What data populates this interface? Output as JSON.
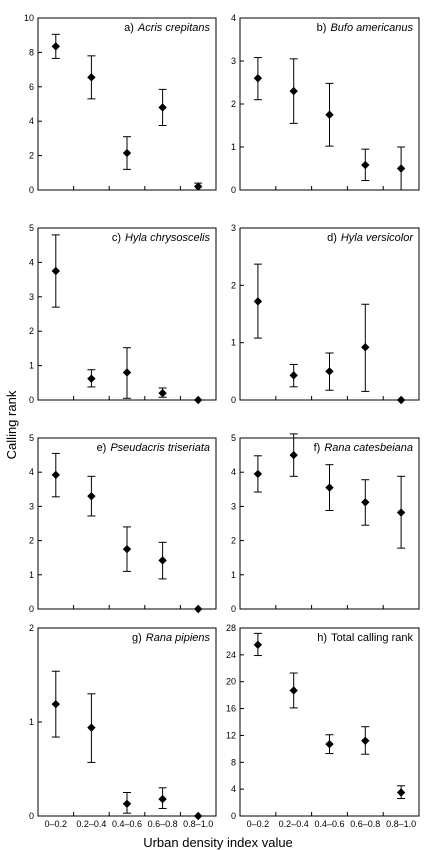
{
  "figure": {
    "xlabel": "Urban density index value",
    "ylabel": "Calling rank",
    "categories": [
      "0–0.2",
      "0.2–0.4",
      "0.4–0.6",
      "0.6–0.8",
      "0.8–1.0"
    ]
  },
  "chart_data": [
    {
      "type": "scatter",
      "prefix": "a)",
      "species": "Acris crepitans",
      "italic": true,
      "ylim": [
        0,
        10
      ],
      "yticks": [
        0,
        2,
        4,
        6,
        8,
        10
      ],
      "mean": [
        8.35,
        6.55,
        2.15,
        4.8,
        0.2
      ],
      "lower": [
        7.65,
        5.3,
        1.2,
        3.75,
        0.0
      ],
      "upper": [
        9.05,
        7.8,
        3.1,
        5.85,
        0.4
      ]
    },
    {
      "type": "scatter",
      "prefix": "b)",
      "species": "Bufo americanus",
      "italic": true,
      "ylim": [
        0,
        4
      ],
      "yticks": [
        0,
        1,
        2,
        3,
        4
      ],
      "mean": [
        2.6,
        2.3,
        1.75,
        0.58,
        0.5
      ],
      "lower": [
        2.1,
        1.55,
        1.02,
        0.22,
        0.0
      ],
      "upper": [
        3.08,
        3.05,
        2.48,
        0.95,
        1.0
      ]
    },
    {
      "type": "scatter",
      "prefix": "c)",
      "species": "Hyla chrysoscelis",
      "italic": true,
      "ylim": [
        0,
        5
      ],
      "yticks": [
        0,
        1,
        2,
        3,
        4,
        5
      ],
      "mean": [
        3.75,
        0.62,
        0.8,
        0.2,
        0.0
      ],
      "lower": [
        2.7,
        0.38,
        0.05,
        0.08,
        0.0
      ],
      "upper": [
        4.8,
        0.88,
        1.52,
        0.35,
        0.0
      ]
    },
    {
      "type": "scatter",
      "prefix": "d)",
      "species": "Hyla versicolor",
      "italic": true,
      "ylim": [
        0,
        3
      ],
      "yticks": [
        0,
        1,
        2,
        3
      ],
      "mean": [
        1.72,
        0.43,
        0.5,
        0.92,
        0.0
      ],
      "lower": [
        1.08,
        0.23,
        0.17,
        0.15,
        0.0
      ],
      "upper": [
        2.37,
        0.62,
        0.82,
        1.67,
        0.0
      ]
    },
    {
      "type": "scatter",
      "prefix": "e)",
      "species": "Pseudacris triseriata",
      "italic": true,
      "ylim": [
        0,
        5
      ],
      "yticks": [
        0,
        1,
        2,
        3,
        4,
        5
      ],
      "mean": [
        3.92,
        3.3,
        1.75,
        1.42,
        0.0
      ],
      "lower": [
        3.28,
        2.72,
        1.1,
        0.88,
        0.0
      ],
      "upper": [
        4.55,
        3.88,
        2.4,
        1.95,
        0.0
      ]
    },
    {
      "type": "scatter",
      "prefix": "f)",
      "species": "Rana catesbeiana",
      "italic": true,
      "ylim": [
        0,
        5
      ],
      "yticks": [
        0,
        1,
        2,
        3,
        4,
        5
      ],
      "mean": [
        3.95,
        4.5,
        3.55,
        3.12,
        2.82
      ],
      "lower": [
        3.42,
        3.88,
        2.88,
        2.45,
        1.78
      ],
      "upper": [
        4.48,
        5.12,
        4.22,
        3.78,
        3.88
      ]
    },
    {
      "type": "scatter",
      "prefix": "g)",
      "species": "Rana pipiens",
      "italic": true,
      "ylim": [
        0,
        2
      ],
      "yticks": [
        0,
        1,
        2
      ],
      "mean": [
        1.19,
        0.94,
        0.13,
        0.18,
        0.0
      ],
      "lower": [
        0.84,
        0.57,
        0.03,
        0.08,
        0.0
      ],
      "upper": [
        1.54,
        1.3,
        0.25,
        0.3,
        0.0
      ]
    },
    {
      "type": "scatter",
      "prefix": "h)",
      "species": "Total calling rank",
      "italic": false,
      "ylim": [
        0,
        28
      ],
      "yticks": [
        0,
        4,
        8,
        12,
        16,
        20,
        24,
        28
      ],
      "mean": [
        25.5,
        18.7,
        10.7,
        11.2,
        3.5
      ],
      "lower": [
        23.9,
        16.1,
        9.3,
        9.2,
        2.6
      ],
      "upper": [
        27.2,
        21.3,
        12.1,
        13.3,
        4.5
      ]
    }
  ]
}
